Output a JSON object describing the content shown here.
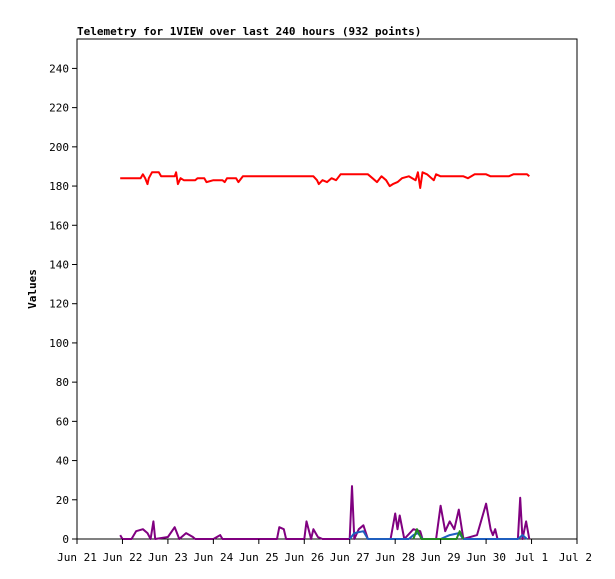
{
  "chart_data": {
    "type": "line",
    "title": "Telemetry for 1VIEW over last 240 hours (932 points)",
    "xlabel": "",
    "ylabel": "Values",
    "ylim": [
      0,
      255
    ],
    "yticks": [
      0,
      20,
      40,
      60,
      80,
      100,
      120,
      140,
      160,
      180,
      200,
      220,
      240
    ],
    "xlim": [
      "Jun 21",
      "Jul 2"
    ],
    "xticks": [
      "Jun 21",
      "Jun 22",
      "Jun 23",
      "Jun 24",
      "Jun 25",
      "Jun 26",
      "Jun 27",
      "Jun 28",
      "Jun 29",
      "Jun 30",
      "Jul 1",
      "Jul 2"
    ],
    "grid": false,
    "legend": "none",
    "colors": {
      "red": "#ff0000",
      "purple": "#800080",
      "blue": "#1f5fbf",
      "green": "#228b22"
    },
    "series": [
      {
        "color": "#ff0000",
        "points": [
          [
            0.95,
            184
          ],
          [
            1.4,
            184
          ],
          [
            1.45,
            186
          ],
          [
            1.5,
            184
          ],
          [
            1.55,
            181
          ],
          [
            1.58,
            184
          ],
          [
            1.65,
            187
          ],
          [
            1.8,
            187
          ],
          [
            1.85,
            185
          ],
          [
            2.15,
            185
          ],
          [
            2.18,
            187
          ],
          [
            2.22,
            181
          ],
          [
            2.28,
            184
          ],
          [
            2.35,
            183
          ],
          [
            2.6,
            183
          ],
          [
            2.65,
            184
          ],
          [
            2.8,
            184
          ],
          [
            2.85,
            182
          ],
          [
            3.0,
            183
          ],
          [
            3.2,
            183
          ],
          [
            3.25,
            182
          ],
          [
            3.3,
            184
          ],
          [
            3.5,
            184
          ],
          [
            3.55,
            182
          ],
          [
            3.65,
            185
          ],
          [
            4.5,
            185
          ],
          [
            5.2,
            185
          ],
          [
            5.28,
            183
          ],
          [
            5.32,
            181
          ],
          [
            5.4,
            183
          ],
          [
            5.5,
            182
          ],
          [
            5.6,
            184
          ],
          [
            5.7,
            183
          ],
          [
            5.8,
            186
          ],
          [
            6.4,
            186
          ],
          [
            6.5,
            184
          ],
          [
            6.6,
            182
          ],
          [
            6.7,
            185
          ],
          [
            6.8,
            183
          ],
          [
            6.88,
            180
          ],
          [
            6.95,
            181
          ],
          [
            7.05,
            182
          ],
          [
            7.15,
            184
          ],
          [
            7.3,
            185
          ],
          [
            7.45,
            183
          ],
          [
            7.5,
            187
          ],
          [
            7.55,
            179
          ],
          [
            7.6,
            187
          ],
          [
            7.7,
            186
          ],
          [
            7.85,
            183
          ],
          [
            7.9,
            186
          ],
          [
            8.0,
            185
          ],
          [
            8.5,
            185
          ],
          [
            8.6,
            184
          ],
          [
            8.75,
            186
          ],
          [
            9.0,
            186
          ],
          [
            9.1,
            185
          ],
          [
            9.5,
            185
          ],
          [
            9.6,
            186
          ],
          [
            9.9,
            186
          ],
          [
            9.95,
            185
          ]
        ]
      },
      {
        "color": "#800080",
        "points": [
          [
            0.95,
            2
          ],
          [
            1.0,
            0
          ],
          [
            1.2,
            0
          ],
          [
            1.3,
            4
          ],
          [
            1.45,
            5
          ],
          [
            1.55,
            3
          ],
          [
            1.62,
            0
          ],
          [
            1.68,
            9
          ],
          [
            1.72,
            0
          ],
          [
            2.0,
            1
          ],
          [
            2.15,
            6
          ],
          [
            2.25,
            0
          ],
          [
            2.4,
            3
          ],
          [
            2.55,
            1
          ],
          [
            2.6,
            0
          ],
          [
            3.0,
            0
          ],
          [
            3.15,
            2
          ],
          [
            3.2,
            0
          ],
          [
            4.4,
            0
          ],
          [
            4.45,
            6
          ],
          [
            4.55,
            5
          ],
          [
            4.6,
            0
          ],
          [
            5.0,
            0
          ],
          [
            5.05,
            9
          ],
          [
            5.15,
            0
          ],
          [
            5.2,
            5
          ],
          [
            5.3,
            1
          ],
          [
            5.4,
            0
          ],
          [
            6.0,
            0
          ],
          [
            6.05,
            27
          ],
          [
            6.1,
            0
          ],
          [
            6.2,
            5
          ],
          [
            6.3,
            7
          ],
          [
            6.4,
            0
          ],
          [
            6.9,
            0
          ],
          [
            7.0,
            13
          ],
          [
            7.05,
            5
          ],
          [
            7.1,
            12
          ],
          [
            7.2,
            0
          ],
          [
            7.4,
            5
          ],
          [
            7.55,
            4
          ],
          [
            7.6,
            0
          ],
          [
            7.9,
            0
          ],
          [
            8.0,
            17
          ],
          [
            8.1,
            4
          ],
          [
            8.2,
            9
          ],
          [
            8.3,
            5
          ],
          [
            8.4,
            15
          ],
          [
            8.5,
            0
          ],
          [
            8.8,
            2
          ],
          [
            9.0,
            18
          ],
          [
            9.1,
            5
          ],
          [
            9.15,
            2
          ],
          [
            9.2,
            5
          ],
          [
            9.25,
            0
          ],
          [
            9.7,
            0
          ],
          [
            9.75,
            21
          ],
          [
            9.8,
            0
          ],
          [
            9.88,
            9
          ],
          [
            9.95,
            0
          ]
        ]
      },
      {
        "color": "#1f5fbf",
        "points": [
          [
            6.0,
            0
          ],
          [
            6.1,
            3
          ],
          [
            6.3,
            4
          ],
          [
            6.4,
            0
          ],
          [
            7.3,
            0
          ],
          [
            7.4,
            2
          ],
          [
            7.5,
            3
          ],
          [
            7.6,
            0
          ],
          [
            8.0,
            0
          ],
          [
            8.2,
            2
          ],
          [
            8.4,
            3
          ],
          [
            8.5,
            0
          ],
          [
            9.7,
            0
          ],
          [
            9.8,
            2
          ],
          [
            9.9,
            0
          ]
        ]
      },
      {
        "color": "#228b22",
        "points": [
          [
            7.4,
            0
          ],
          [
            7.48,
            5
          ],
          [
            7.58,
            0
          ],
          [
            8.35,
            0
          ],
          [
            8.42,
            4
          ],
          [
            8.5,
            0
          ]
        ]
      }
    ]
  }
}
